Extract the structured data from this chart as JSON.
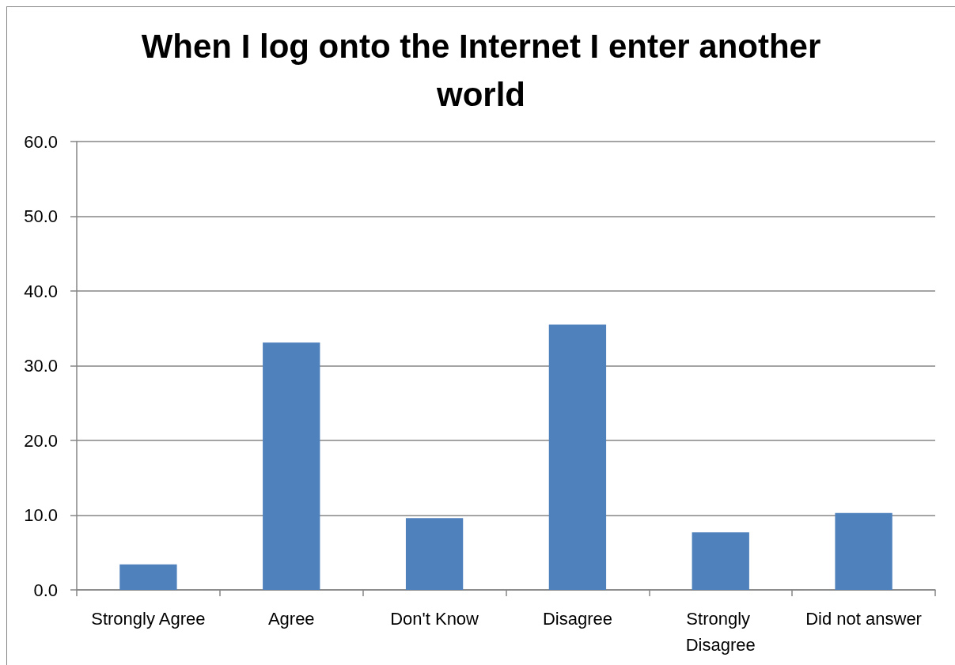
{
  "chart_data": {
    "type": "bar",
    "title": "When I log onto the Internet I enter another world",
    "categories": [
      "Strongly Agree",
      "Agree",
      "Don't Know",
      "Disagree",
      "Strongly Disagree",
      "Did not answer"
    ],
    "values": [
      3.4,
      33.1,
      9.6,
      35.5,
      7.7,
      10.3
    ],
    "color": "#4f81bd",
    "ylim": [
      0,
      60
    ],
    "yticks": [
      {
        "value": 0,
        "label": "0.0"
      },
      {
        "value": 10,
        "label": "10.0"
      },
      {
        "value": 20,
        "label": "20.0"
      },
      {
        "value": 30,
        "label": "30.0"
      },
      {
        "value": 40,
        "label": "40.0"
      },
      {
        "value": 50,
        "label": "50.0"
      },
      {
        "value": 60,
        "label": "60.0"
      }
    ],
    "grid": "y"
  }
}
